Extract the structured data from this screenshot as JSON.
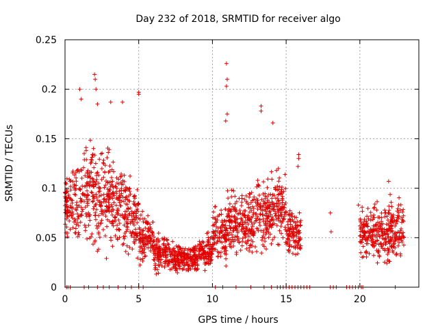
{
  "chart_data": {
    "type": "scatter",
    "title": "Day 232 of 2018, SRMTID for receiver algo",
    "xlabel": "GPS time / hours",
    "ylabel": "SRMTID / TECUs",
    "xlim": [
      0,
      24
    ],
    "ylim": [
      0,
      0.25
    ],
    "xticks": [
      0,
      5,
      10,
      15,
      20
    ],
    "xtick_labels": [
      "0",
      "5",
      "10",
      "15",
      "20"
    ],
    "yticks": [
      0,
      0.05,
      0.1,
      0.15,
      0.2,
      0.25
    ],
    "ytick_labels": [
      "0",
      "0.05",
      "0.1",
      "0.15",
      "0.2",
      "0.25"
    ],
    "grid": true,
    "marker": "+",
    "color": "#e00000",
    "series": [
      {
        "name": "SRMTID",
        "envelope": [
          {
            "x": [
              0.0,
              1.0
            ],
            "y_center": 0.085,
            "y_spread": 0.03
          },
          {
            "x": [
              1.0,
              2.0
            ],
            "y_center": 0.095,
            "y_spread": 0.04
          },
          {
            "x": [
              2.0,
              3.0
            ],
            "y_center": 0.09,
            "y_spread": 0.045
          },
          {
            "x": [
              3.0,
              4.0
            ],
            "y_center": 0.085,
            "y_spread": 0.04
          },
          {
            "x": [
              4.0,
              5.0
            ],
            "y_center": 0.07,
            "y_spread": 0.035
          },
          {
            "x": [
              5.0,
              6.0
            ],
            "y_center": 0.05,
            "y_spread": 0.02
          },
          {
            "x": [
              6.0,
              7.0
            ],
            "y_center": 0.035,
            "y_spread": 0.015
          },
          {
            "x": [
              7.0,
              8.0
            ],
            "y_center": 0.03,
            "y_spread": 0.012
          },
          {
            "x": [
              8.0,
              9.0
            ],
            "y_center": 0.028,
            "y_spread": 0.012
          },
          {
            "x": [
              9.0,
              10.0
            ],
            "y_center": 0.035,
            "y_spread": 0.015
          },
          {
            "x": [
              10.0,
              11.0
            ],
            "y_center": 0.055,
            "y_spread": 0.025
          },
          {
            "x": [
              11.0,
              12.0
            ],
            "y_center": 0.065,
            "y_spread": 0.025
          },
          {
            "x": [
              12.0,
              13.0
            ],
            "y_center": 0.065,
            "y_spread": 0.025
          },
          {
            "x": [
              13.0,
              14.0
            ],
            "y_center": 0.075,
            "y_spread": 0.03
          },
          {
            "x": [
              14.0,
              15.0
            ],
            "y_center": 0.08,
            "y_spread": 0.03
          },
          {
            "x": [
              15.0,
              16.0
            ],
            "y_center": 0.055,
            "y_spread": 0.02
          },
          {
            "x": [
              20.0,
              21.0
            ],
            "y_center": 0.055,
            "y_spread": 0.02
          },
          {
            "x": [
              21.0,
              22.0
            ],
            "y_center": 0.055,
            "y_spread": 0.025
          },
          {
            "x": [
              22.0,
              23.0
            ],
            "y_center": 0.06,
            "y_spread": 0.025
          }
        ],
        "outliers": [
          {
            "x": 1.0,
            "y": 0.2
          },
          {
            "x": 1.1,
            "y": 0.19
          },
          {
            "x": 2.0,
            "y": 0.215
          },
          {
            "x": 2.05,
            "y": 0.21
          },
          {
            "x": 2.1,
            "y": 0.2
          },
          {
            "x": 2.2,
            "y": 0.185
          },
          {
            "x": 3.1,
            "y": 0.187
          },
          {
            "x": 3.9,
            "y": 0.187
          },
          {
            "x": 5.0,
            "y": 0.197
          },
          {
            "x": 5.0,
            "y": 0.195
          },
          {
            "x": 10.95,
            "y": 0.226
          },
          {
            "x": 11.0,
            "y": 0.21
          },
          {
            "x": 10.95,
            "y": 0.203
          },
          {
            "x": 11.0,
            "y": 0.175
          },
          {
            "x": 10.9,
            "y": 0.168
          },
          {
            "x": 13.3,
            "y": 0.183
          },
          {
            "x": 13.3,
            "y": 0.178
          },
          {
            "x": 14.1,
            "y": 0.166
          },
          {
            "x": 15.85,
            "y": 0.134
          },
          {
            "x": 15.85,
            "y": 0.13
          },
          {
            "x": 15.8,
            "y": 0.122
          },
          {
            "x": 18.0,
            "y": 0.075
          },
          {
            "x": 18.05,
            "y": 0.056
          },
          {
            "x": 19.9,
            "y": 0.083
          },
          {
            "x": 21.95,
            "y": 0.107
          }
        ],
        "zeros": [
          0.1,
          0.2,
          0.35,
          1.3,
          1.6,
          2.2,
          2.6,
          3.0,
          3.6,
          4.1,
          4.5,
          5.0,
          5.3,
          10.2,
          10.7,
          11.6,
          12.6,
          13.5,
          14.0,
          14.4,
          14.6,
          14.8,
          15.0,
          15.2,
          15.4,
          15.6,
          15.8,
          16.0,
          16.2,
          16.4,
          16.6,
          18.0,
          18.2,
          18.4,
          19.1,
          19.3,
          19.5,
          19.7,
          19.9,
          20.1,
          20.2,
          22.4
        ]
      }
    ]
  }
}
